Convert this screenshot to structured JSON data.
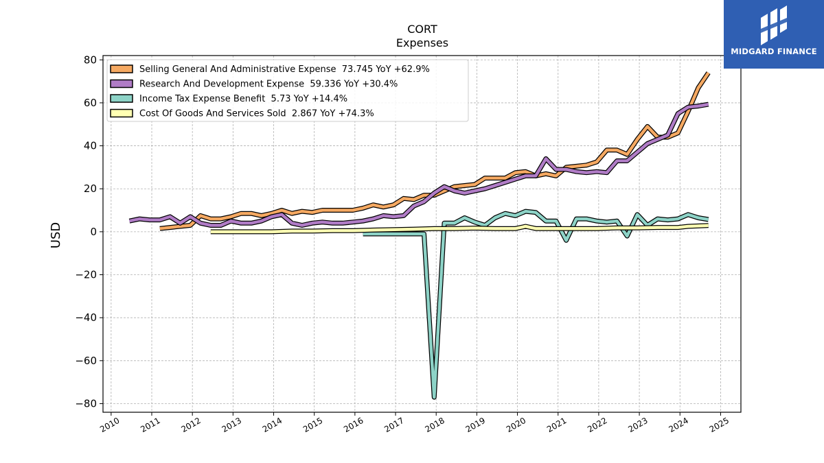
{
  "brand": {
    "name": "MIDGARD FINANCE",
    "bg_color": "#2f5fb3"
  },
  "chart_data": {
    "type": "line",
    "title": "CORT",
    "subtitle": "Expenses",
    "xlabel": "",
    "ylabel": "USD",
    "xlim": [
      2009.8,
      2025.5
    ],
    "ylim": [
      -84,
      82
    ],
    "yticks": [
      -80,
      -60,
      -40,
      -20,
      0,
      20,
      40,
      60,
      80
    ],
    "xticks": [
      2010,
      2011,
      2012,
      2013,
      2014,
      2015,
      2016,
      2017,
      2018,
      2019,
      2020,
      2021,
      2022,
      2023,
      2024,
      2025
    ],
    "grid": true,
    "legend_position": "top-left",
    "series": [
      {
        "name": "Selling General And Administrative Expense  73.745 YoY +62.9%",
        "color": "#f5a962",
        "x": [
          2011.2,
          2011.45,
          2011.7,
          2011.95,
          2012.2,
          2012.45,
          2012.7,
          2012.95,
          2013.2,
          2013.45,
          2013.7,
          2013.95,
          2014.2,
          2014.45,
          2014.7,
          2014.95,
          2015.2,
          2015.45,
          2015.7,
          2015.95,
          2016.2,
          2016.45,
          2016.7,
          2016.95,
          2017.2,
          2017.45,
          2017.7,
          2017.95,
          2018.2,
          2018.45,
          2018.7,
          2018.95,
          2019.2,
          2019.45,
          2019.7,
          2019.95,
          2020.2,
          2020.45,
          2020.7,
          2020.95,
          2021.2,
          2021.45,
          2021.7,
          2021.95,
          2022.2,
          2022.45,
          2022.7,
          2022.95,
          2023.2,
          2023.45,
          2023.7,
          2023.95,
          2024.2,
          2024.45,
          2024.7
        ],
        "y": [
          1.5,
          2,
          2.5,
          3,
          7.5,
          6,
          6,
          7,
          8.5,
          8.5,
          7.5,
          8.5,
          10,
          8.5,
          9.5,
          9,
          10,
          10,
          10,
          10,
          11,
          12.5,
          11.5,
          12.5,
          15.5,
          15,
          17,
          17,
          19,
          21,
          21.5,
          22,
          25,
          25,
          25,
          27.5,
          28,
          26,
          27,
          26,
          30,
          30.5,
          31,
          32.5,
          38,
          38,
          36,
          43,
          49,
          44,
          44,
          46,
          56,
          67,
          74
        ]
      },
      {
        "name": "Research And Development Expense  59.336 YoY +30.4%",
        "color": "#b07cc6",
        "x": [
          2010.45,
          2010.7,
          2010.95,
          2011.2,
          2011.45,
          2011.7,
          2011.95,
          2012.2,
          2012.45,
          2012.7,
          2012.95,
          2013.2,
          2013.45,
          2013.7,
          2013.95,
          2014.2,
          2014.45,
          2014.7,
          2014.95,
          2015.2,
          2015.45,
          2015.7,
          2015.95,
          2016.2,
          2016.45,
          2016.7,
          2016.95,
          2017.2,
          2017.45,
          2017.7,
          2017.95,
          2018.2,
          2018.45,
          2018.7,
          2018.95,
          2019.2,
          2019.45,
          2019.7,
          2019.95,
          2020.2,
          2020.45,
          2020.7,
          2020.95,
          2021.2,
          2021.45,
          2021.7,
          2021.95,
          2022.2,
          2022.45,
          2022.7,
          2022.95,
          2023.2,
          2023.45,
          2023.7,
          2023.95,
          2024.2,
          2024.45,
          2024.7
        ],
        "y": [
          5,
          6,
          5.5,
          5.5,
          7,
          4,
          7,
          4,
          3,
          3,
          5,
          4,
          4,
          5,
          7,
          8,
          4,
          3,
          4,
          4.5,
          4,
          4,
          4.5,
          5,
          6,
          7.5,
          7,
          7.5,
          12,
          14,
          18,
          21,
          19,
          18,
          19,
          20,
          21.5,
          23,
          24.5,
          26,
          26,
          34,
          29,
          29,
          28,
          27.5,
          28,
          27.5,
          33,
          33,
          37,
          41,
          43,
          45,
          55,
          58,
          58.5,
          59.3
        ]
      },
      {
        "name": "Income Tax Expense Benefit  5.73 YoY +14.4%",
        "color": "#8dd3c7",
        "x": [
          2016.2,
          2016.45,
          2016.7,
          2016.95,
          2017.2,
          2017.45,
          2017.7,
          2017.95,
          2018.2,
          2018.45,
          2018.7,
          2018.95,
          2019.2,
          2019.45,
          2019.7,
          2019.95,
          2020.2,
          2020.45,
          2020.7,
          2020.95,
          2021.2,
          2021.45,
          2021.7,
          2021.95,
          2022.2,
          2022.45,
          2022.7,
          2022.95,
          2023.2,
          2023.45,
          2023.7,
          2023.95,
          2024.2,
          2024.45,
          2024.7
        ],
        "y": [
          -1,
          -1,
          -1,
          -1,
          -1,
          -1,
          -1,
          -77,
          4,
          4,
          6.5,
          4.5,
          3,
          6.5,
          8.5,
          7.5,
          9.5,
          9,
          5,
          5,
          -4,
          6,
          6,
          5,
          4.5,
          5,
          -2,
          8,
          3,
          6,
          5.5,
          6,
          8,
          6.5,
          5.7
        ]
      },
      {
        "name": "Cost Of Goods And Services Sold  2.867 YoY +74.3%",
        "color": "#ffffb3",
        "x": [
          2012.45,
          2012.95,
          2013.45,
          2013.95,
          2014.45,
          2014.95,
          2015.45,
          2015.95,
          2016.45,
          2016.95,
          2017.45,
          2017.95,
          2018.45,
          2018.95,
          2019.45,
          2019.95,
          2020.2,
          2020.45,
          2020.95,
          2021.45,
          2021.95,
          2022.45,
          2022.95,
          2023.45,
          2023.95,
          2024.2,
          2024.45,
          2024.7
        ],
        "y": [
          0,
          0,
          0,
          0,
          0.3,
          0.3,
          0.5,
          0.5,
          0.8,
          1,
          1.2,
          1.5,
          1.5,
          1.7,
          1.5,
          1.5,
          2.5,
          1.5,
          1.5,
          1.5,
          1.5,
          1.8,
          1.8,
          2,
          2,
          2.5,
          2.7,
          2.9
        ]
      }
    ]
  }
}
